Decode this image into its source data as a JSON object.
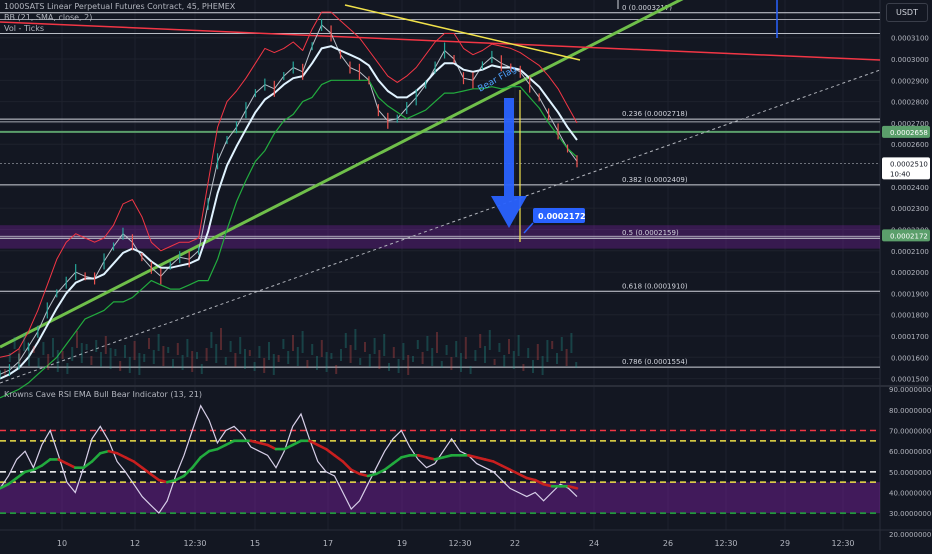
{
  "header": {
    "symbol_line": "1000SATS Linear Perpetual Futures Contract, 45, PHEMEX",
    "bb_line": "BB (21, SMA, close, 2)",
    "vol_line": "Vol - Ticks",
    "currency": "USDT"
  },
  "colors": {
    "background": "#131722",
    "grid": "#1e222d",
    "bb_upper": "#f23645",
    "bb_lower": "#22ab3e",
    "basis": "#e0f3ff",
    "trendline_green": "#6fbf4a",
    "trendline_red": "#f23645",
    "trendline_yellow": "#f0e14a",
    "arrow_blue": "#2962ff",
    "purple_zone": "#7b1fa2",
    "rsi_line": "#d7cfe8",
    "ema_bull": "#22ab3e",
    "ema_bear": "#c81f1f"
  },
  "chart_data": [
    {
      "type": "line",
      "title": "1000SATS Linear Perpetual Futures Contract, 45, PHEMEX",
      "yaxis_ticks": [
        "0.0003100",
        "0.0003000",
        "0.0002900",
        "0.0002800",
        "0.0002700",
        "0.0002600",
        "0.0002400",
        "0.0002300",
        "0.0002200",
        "0.0002100",
        "0.0002000",
        "0.0001900",
        "0.0001800",
        "0.0001700",
        "0.0001600",
        "0.0001500"
      ],
      "ylim": [
        0.000147,
        0.000323
      ],
      "xaxis_ticks": [
        "10",
        "12",
        "12:30",
        "15",
        "17",
        "19",
        "12:30",
        "22",
        "24",
        "26",
        "12:30",
        "29",
        "12:30"
      ],
      "price_tags": [
        {
          "label": "0.0002658",
          "value": 0.0002658,
          "color": "#5b9f6b"
        },
        {
          "label": "0.0002510",
          "sub": "10:40",
          "value": 0.000251,
          "color": "#ffffff"
        },
        {
          "label": "0.0002172",
          "value": 0.0002172,
          "color": "#5b9f6b"
        }
      ],
      "fib_levels": [
        {
          "label": "0 (0.0003217)",
          "value": 0.0003217
        },
        {
          "label": "0.236 (0.0002718)",
          "value": 0.0002718
        },
        {
          "label": "0.382 (0.0002409)",
          "value": 0.0002409
        },
        {
          "label": "0.5 (0.0002159)",
          "value": 0.0002159
        },
        {
          "label": "0.618 (0.0001910)",
          "value": 0.000191
        },
        {
          "label": "0.786 (0.0001554)",
          "value": 0.0001554
        }
      ],
      "target_callout": "0.0002172",
      "pattern_label": "Bear Flag",
      "series": [
        {
          "role": "price",
          "values": [
            0.000152,
            0.000154,
            0.000158,
            0.000165,
            0.000172,
            0.000182,
            0.00019,
            0.000195,
            0.0002,
            0.000198,
            0.000197,
            0.000205,
            0.000212,
            0.000218,
            0.000214,
            0.000207,
            0.000202,
            0.000198,
            0.000203,
            0.000207,
            0.000206,
            0.00021,
            0.000232,
            0.000252,
            0.000262,
            0.000268,
            0.000276,
            0.000284,
            0.000288,
            0.000286,
            0.000292,
            0.000296,
            0.000294,
            0.000306,
            0.000316,
            0.000312,
            0.000302,
            0.000296,
            0.000294,
            0.00029,
            0.000276,
            0.000271,
            0.000272,
            0.000277,
            0.000282,
            0.000288,
            0.000296,
            0.000304,
            0.0003,
            0.000291,
            0.00029,
            0.000297,
            0.000301,
            0.000298,
            0.000296,
            0.000294,
            0.000288,
            0.000282,
            0.000274,
            0.000266,
            0.000258,
            0.000252
          ]
        },
        {
          "role": "bb_upper",
          "values": [
            0.00016,
            0.000161,
            0.000164,
            0.000172,
            0.000182,
            0.000194,
            0.000206,
            0.000214,
            0.000218,
            0.000216,
            0.000214,
            0.000216,
            0.000222,
            0.000232,
            0.000234,
            0.000226,
            0.000214,
            0.00021,
            0.000212,
            0.000214,
            0.000214,
            0.000216,
            0.000242,
            0.000268,
            0.00028,
            0.000285,
            0.000291,
            0.000298,
            0.000305,
            0.000303,
            0.000305,
            0.000308,
            0.000304,
            0.000314,
            0.000322,
            0.000322,
            0.000318,
            0.000314,
            0.00031,
            0.000304,
            0.000298,
            0.000292,
            0.000289,
            0.000292,
            0.000296,
            0.000302,
            0.000308,
            0.000312,
            0.000312,
            0.000305,
            0.000302,
            0.000304,
            0.000307,
            0.000306,
            0.000305,
            0.000303,
            0.0003,
            0.000297,
            0.000292,
            0.000286,
            0.000278,
            0.00027
          ]
        },
        {
          "role": "basis",
          "values": [
            0.00015,
            0.000152,
            0.000155,
            0.00016,
            0.000167,
            0.000175,
            0.000183,
            0.00019,
            0.000195,
            0.000197,
            0.000197,
            0.000199,
            0.000204,
            0.000209,
            0.000211,
            0.000209,
            0.000205,
            0.000202,
            0.000202,
            0.000203,
            0.000204,
            0.000206,
            0.000219,
            0.000237,
            0.00025,
            0.000259,
            0.000267,
            0.000275,
            0.000281,
            0.000284,
            0.000288,
            0.000291,
            0.000292,
            0.000298,
            0.000305,
            0.000306,
            0.000304,
            0.000302,
            0.0003,
            0.000297,
            0.00029,
            0.000285,
            0.000282,
            0.000282,
            0.000285,
            0.000289,
            0.000294,
            0.000298,
            0.000298,
            0.000295,
            0.000294,
            0.000295,
            0.000297,
            0.000296,
            0.000296,
            0.000295,
            0.000291,
            0.000287,
            0.000281,
            0.000275,
            0.000268,
            0.000262
          ]
        },
        {
          "role": "bb_lower",
          "values": [
            0.000141,
            0.000143,
            0.000145,
            0.000148,
            0.000152,
            0.000156,
            0.00016,
            0.000166,
            0.000172,
            0.000178,
            0.00018,
            0.000182,
            0.000186,
            0.000186,
            0.000188,
            0.000192,
            0.000196,
            0.000194,
            0.000192,
            0.000192,
            0.000194,
            0.000196,
            0.000196,
            0.000206,
            0.00022,
            0.000233,
            0.000243,
            0.000252,
            0.000257,
            0.000265,
            0.000271,
            0.000274,
            0.00028,
            0.000282,
            0.000288,
            0.00029,
            0.00029,
            0.00029,
            0.00029,
            0.00029,
            0.000282,
            0.000278,
            0.000275,
            0.000272,
            0.000274,
            0.000276,
            0.00028,
            0.000284,
            0.000284,
            0.000285,
            0.000286,
            0.000286,
            0.000287,
            0.000286,
            0.000287,
            0.000287,
            0.000282,
            0.000277,
            0.00027,
            0.000264,
            0.000258,
            0.000254
          ]
        }
      ]
    },
    {
      "type": "line",
      "title": "Krowns Cave RSI EMA Bull Bear Indicator (13, 21)",
      "yaxis_ticks": [
        "90.0000000",
        "80.0000000",
        "70.0000000",
        "60.0000000",
        "50.0000000",
        "40.0000000",
        "30.0000000",
        "20.0000000"
      ],
      "ylim": [
        17,
        93
      ],
      "levels": [
        {
          "value": 70,
          "color": "#f23645"
        },
        {
          "value": 65,
          "color": "#f0e14a"
        },
        {
          "value": 50,
          "color": "#ffffff"
        },
        {
          "value": 45,
          "color": "#f0e14a"
        },
        {
          "value": 30,
          "color": "#22ab3e"
        }
      ],
      "zone": [
        30,
        45
      ],
      "series": [
        {
          "role": "rsi",
          "values": [
            42,
            48,
            56,
            60,
            52,
            63,
            70,
            58,
            45,
            40,
            52,
            66,
            72,
            65,
            55,
            50,
            44,
            38,
            34,
            30,
            36,
            48,
            58,
            70,
            82,
            75,
            64,
            70,
            72,
            68,
            62,
            60,
            58,
            52,
            60,
            72,
            78,
            66,
            55,
            50,
            48,
            40,
            32,
            36,
            44,
            52,
            60,
            66,
            70,
            62,
            56,
            52,
            54,
            60,
            66,
            60,
            58,
            54,
            52,
            50,
            46,
            42,
            40,
            38,
            40,
            36,
            40,
            44,
            42,
            38
          ]
        },
        {
          "role": "ema",
          "values": [
            42,
            44,
            47,
            50,
            51,
            53,
            56,
            56,
            54,
            52,
            52,
            55,
            59,
            60,
            59,
            57,
            55,
            52,
            49,
            46,
            45,
            46,
            48,
            52,
            57,
            60,
            61,
            63,
            65,
            65,
            65,
            64,
            63,
            61,
            61,
            63,
            65,
            65,
            63,
            61,
            58,
            55,
            51,
            49,
            48,
            49,
            51,
            54,
            57,
            58,
            58,
            57,
            56,
            57,
            58,
            58,
            58,
            57,
            56,
            55,
            53,
            51,
            49,
            47,
            46,
            44,
            43,
            43,
            43,
            42
          ]
        }
      ]
    }
  ]
}
